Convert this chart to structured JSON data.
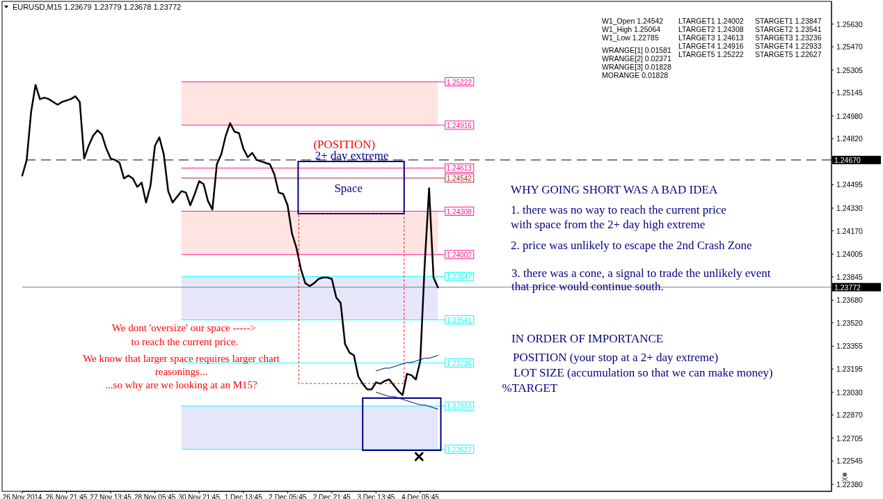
{
  "chart_data": {
    "type": "line",
    "title": "EURUSD,M15 1.23679 1.23779 1.23678 1.23772",
    "categories": [
      "26 Nov 2014",
      null,
      null,
      null,
      null,
      null,
      null,
      null,
      null,
      null,
      "26 Nov 21:45",
      null,
      null,
      null,
      null,
      null,
      null,
      null,
      null,
      null,
      "27 Nov 13:45",
      null,
      null,
      null,
      null,
      null,
      null,
      null,
      null,
      null,
      "28 Nov 05:45",
      null,
      null,
      null,
      null,
      null,
      null,
      null,
      null,
      null,
      "30 Nov 21:45",
      null,
      null,
      null,
      null,
      null,
      null,
      null,
      null,
      null,
      "1 Dec 13:45",
      null,
      null,
      null,
      null,
      null,
      null,
      null,
      null,
      null,
      "2 Dec 05:45",
      null,
      null,
      null,
      null,
      null,
      null,
      null,
      null,
      null,
      "2 Dec 21:45",
      null,
      null,
      null,
      null,
      null,
      null,
      null,
      null,
      null,
      "3 Dec 13:45",
      null,
      null,
      null,
      null,
      null,
      null,
      null,
      null,
      null,
      "4 Dec 05:45",
      null,
      null,
      null,
      null,
      null,
      null,
      null,
      null,
      null,
      null,
      null,
      null,
      null,
      null,
      null,
      null,
      null,
      null,
      null,
      null,
      null,
      null,
      null,
      null,
      null,
      null,
      null,
      null,
      null,
      null,
      null,
      null,
      null,
      null,
      null,
      null,
      null,
      null,
      null,
      null,
      null,
      null,
      null,
      null,
      null,
      null,
      null,
      null,
      null,
      null,
      null,
      null,
      null,
      null,
      null,
      null,
      null,
      null,
      null,
      null,
      null,
      null,
      null,
      null,
      null,
      null,
      null,
      null,
      null,
      null,
      null,
      null,
      null,
      null,
      null,
      null,
      null,
      null,
      null,
      null,
      null,
      null,
      null,
      null,
      null,
      null,
      null,
      null,
      null,
      null,
      null,
      null,
      null
    ],
    "series": [
      {
        "color": "#000000",
        "values": [
          1.2456,
          1.2467,
          1.2501,
          1.252,
          1.251,
          1.2511,
          1.251,
          1.2508,
          1.2506,
          1.2508,
          1.2509,
          1.251,
          1.2512,
          1.2508,
          1.2468,
          1.2477,
          1.2484,
          1.2488,
          1.2485,
          1.2475,
          1.2468,
          1.2467,
          1.2465,
          1.2454,
          1.2456,
          1.2454,
          1.2448,
          1.2451,
          1.2437,
          1.2449,
          1.2477,
          1.2483,
          1.2471,
          1.2445,
          1.2437,
          1.2441,
          1.2445,
          1.2444,
          1.2435,
          1.2443,
          1.2452,
          1.245,
          1.2438,
          1.2432,
          1.2464,
          1.2471,
          1.2484,
          1.2493,
          1.2487,
          1.2486,
          1.2475,
          1.2469,
          1.2472,
          1.2467,
          1.2466,
          1.2465,
          1.2464,
          1.2457,
          1.2444,
          1.2443,
          1.2435,
          1.2415,
          1.2405,
          1.239,
          1.238,
          1.2378,
          1.238,
          1.2383,
          1.2384,
          1.2384,
          1.2383,
          1.237,
          1.2366,
          1.2337,
          1.2331,
          1.2329,
          1.2314,
          1.2309,
          1.2305,
          1.2305,
          1.231,
          1.2309,
          1.2311,
          1.2312,
          1.2308,
          1.2304,
          1.2301,
          1.2316,
          1.2315,
          1.2312,
          1.2325,
          1.2393,
          1.2447,
          1.2384,
          1.2377,
          null,
          null,
          null,
          null,
          null,
          null,
          null,
          null,
          null,
          null,
          null,
          null,
          null,
          null,
          null,
          null,
          null,
          null,
          null,
          null,
          null,
          null,
          null,
          null,
          null,
          null,
          null,
          null,
          null,
          null,
          null,
          null,
          null,
          null,
          null,
          null,
          null,
          null,
          null,
          null,
          null,
          null,
          null,
          null,
          null,
          null,
          null,
          null,
          null,
          null,
          null,
          null,
          null,
          null,
          null,
          null,
          null,
          null,
          null,
          null,
          null,
          null,
          null,
          null,
          null,
          null,
          null,
          null,
          null,
          null,
          null,
          null,
          null,
          null,
          null,
          null,
          null,
          null,
          null,
          null,
          null,
          null,
          null,
          null,
          null,
          null,
          null,
          null,
          null
        ]
      },
      {
        "type": "line",
        "color": "#000080",
        "values": [
          null,
          null,
          null,
          null,
          null,
          null,
          null,
          null,
          null,
          null,
          null,
          null,
          null,
          null,
          null,
          null,
          null,
          null,
          null,
          null,
          null,
          null,
          null,
          null,
          null,
          null,
          null,
          null,
          null,
          null,
          null,
          null,
          null,
          null,
          null,
          null,
          null,
          null,
          null,
          null,
          null,
          null,
          null,
          null,
          null,
          null,
          null,
          null,
          null,
          null,
          null,
          null,
          null,
          null,
          null,
          null,
          null,
          null,
          null,
          null,
          null,
          null,
          null,
          null,
          null,
          null,
          null,
          null,
          null,
          null,
          null,
          null,
          null,
          null,
          null,
          null,
          null,
          null,
          null,
          null,
          1.2318,
          1.2319,
          1.232,
          1.232,
          1.2321,
          1.2322,
          1.2323,
          1.2324,
          1.2324,
          1.2325,
          1.2326,
          1.2327,
          1.2327,
          1.2328,
          1.2329,
          null,
          null,
          null,
          null,
          null,
          null,
          null,
          null,
          null,
          null,
          null,
          null,
          null,
          null,
          null,
          null,
          null,
          null,
          null,
          null,
          null,
          null,
          null,
          null,
          null,
          null,
          null,
          null,
          null,
          null,
          null,
          null,
          null,
          null,
          null,
          null,
          null,
          null,
          null,
          null,
          null,
          null,
          null,
          null,
          null,
          null,
          null,
          null,
          null,
          null,
          null,
          null,
          null,
          null,
          null,
          null,
          null,
          null,
          null,
          null,
          null,
          null,
          null,
          null,
          null,
          null,
          null,
          null,
          null,
          null,
          null,
          null,
          null,
          null,
          null,
          null,
          null,
          null,
          null,
          null,
          null,
          null,
          null,
          null,
          null,
          null,
          null,
          null,
          null
        ]
      },
      {
        "type": "line",
        "color": "#000080",
        "values": [
          null,
          null,
          null,
          null,
          null,
          null,
          null,
          null,
          null,
          null,
          null,
          null,
          null,
          null,
          null,
          null,
          null,
          null,
          null,
          null,
          null,
          null,
          null,
          null,
          null,
          null,
          null,
          null,
          null,
          null,
          null,
          null,
          null,
          null,
          null,
          null,
          null,
          null,
          null,
          null,
          null,
          null,
          null,
          null,
          null,
          null,
          null,
          null,
          null,
          null,
          null,
          null,
          null,
          null,
          null,
          null,
          null,
          null,
          null,
          null,
          null,
          null,
          null,
          null,
          null,
          null,
          null,
          null,
          null,
          null,
          null,
          null,
          null,
          null,
          null,
          null,
          null,
          null,
          null,
          null,
          1.2303,
          1.2302,
          1.2301,
          1.23,
          1.23,
          1.2299,
          1.2298,
          1.2297,
          1.2296,
          1.2295,
          1.2294,
          1.2294,
          1.2293,
          1.2292,
          1.2291,
          null,
          null,
          null,
          null,
          null,
          null,
          null,
          null,
          null,
          null,
          null,
          null,
          null,
          null,
          null,
          null,
          null,
          null,
          null,
          null,
          null,
          null,
          null,
          null,
          null,
          null,
          null,
          null,
          null,
          null,
          null,
          null,
          null,
          null,
          null,
          null,
          null,
          null,
          null,
          null,
          null,
          null,
          null,
          null,
          null,
          null,
          null,
          null,
          null,
          null,
          null,
          null,
          null,
          null,
          null,
          null,
          null,
          null,
          null,
          null,
          null,
          null,
          null,
          null,
          null,
          null,
          null,
          null,
          null,
          null,
          null,
          null,
          null,
          null,
          null,
          null,
          null,
          null,
          null,
          null,
          null,
          null,
          null,
          null,
          null,
          null,
          null,
          null,
          null
        ]
      }
    ],
    "ylim": [
      1.2233,
      1.2579
    ],
    "yticks": [
      {
        "value": 1.2563,
        "label": "1.25630"
      },
      {
        "value": 1.2547,
        "label": "1.25470"
      },
      {
        "value": 1.25305,
        "label": "1.25305"
      },
      {
        "value": 1.25145,
        "label": "1.25145"
      },
      {
        "value": 1.2498,
        "label": "1.24980"
      },
      {
        "value": 1.2482,
        "label": "1.24820"
      },
      {
        "value": 1.24495,
        "label": "1.24495"
      },
      {
        "value": 1.2433,
        "label": "1.24330"
      },
      {
        "value": 1.2417,
        "label": "1.24170"
      },
      {
        "value": 1.24005,
        "label": "1.24005"
      },
      {
        "value": 1.23845,
        "label": "1.23845"
      },
      {
        "value": 1.2368,
        "label": "1.23680"
      },
      {
        "value": 1.2352,
        "label": "1.23520"
      },
      {
        "value": 1.23355,
        "label": "1.23355"
      },
      {
        "value": 1.23195,
        "label": "1.23195"
      },
      {
        "value": 1.2303,
        "label": "1.23030"
      },
      {
        "value": 1.2287,
        "label": "1.22870"
      },
      {
        "value": 1.22705,
        "label": "1.22705"
      },
      {
        "value": 1.22545,
        "label": "1.22545"
      },
      {
        "value": 1.2238,
        "label": "1.22380"
      }
    ],
    "ref_lines": [
      {
        "axis": "y",
        "value": 1.2467,
        "label": "1.24670",
        "color": "#000000",
        "line_style": "dashed"
      },
      {
        "axis": "y",
        "value": 1.23772,
        "label": "1.23772",
        "color": "#708090"
      },
      {
        "axis": "y",
        "value": 1.25222,
        "label": "1.25222",
        "color": "#ff1493"
      },
      {
        "axis": "y",
        "value": 1.24916,
        "label": "1.24916",
        "color": "#ff1493"
      },
      {
        "axis": "y",
        "value": 1.24613,
        "label": "1.24613",
        "color": "#ff1493"
      },
      {
        "axis": "y",
        "value": 1.24542,
        "label": "1.24542",
        "color": "#a52a2a"
      },
      {
        "axis": "y",
        "value": 1.24308,
        "label": "1.24308",
        "color": "#ff1493"
      },
      {
        "axis": "y",
        "value": 1.24002,
        "label": "1.24002",
        "color": "#ff1493"
      },
      {
        "axis": "y",
        "value": 1.23847,
        "label": "1.23847",
        "color": "#00ffff"
      },
      {
        "axis": "y",
        "value": 1.23541,
        "label": "1.23541",
        "color": "#00ffff"
      },
      {
        "axis": "y",
        "value": 1.23236,
        "label": "1.23236",
        "color": "#00ffff"
      },
      {
        "axis": "y",
        "value": 1.22933,
        "label": "1.22933",
        "color": "#00ffff"
      },
      {
        "axis": "y",
        "value": 1.22627,
        "label": "1.22627",
        "color": "#00ffff"
      }
    ],
    "bands": [
      {
        "axis": "y",
        "from": 1.24916,
        "to": 1.25222,
        "color": "#ffe4e1"
      },
      {
        "axis": "y",
        "from": 1.24002,
        "to": 1.24308,
        "color": "#ffe4e1"
      },
      {
        "axis": "y",
        "from": 1.23541,
        "to": 1.23847,
        "color": "#e6e6fa"
      },
      {
        "axis": "y",
        "from": 1.22627,
        "to": 1.22933,
        "color": "#e6e6fa"
      }
    ],
    "annotations": [
      "W1_Open 1.24542",
      "W1_High 1.25064",
      "W1_Low 1.22785",
      "WRANGE[1] 0.01581",
      "WRANGE[2] 0.02371",
      "WRANGE[3] 0.01828",
      "MORANGE 0.01828",
      "LTARGET1 1.24002",
      "LTARGET2 1.24308",
      "LTARGET3 1.24613",
      "LTARGET4 1.24916",
      "LTARGET5 1.25222",
      "STARGET1 1.23847",
      "STARGET2 1.23541",
      "STARGET3 1.23236",
      "STARGET4 1.22933",
      "STARGET5 1.22627",
      "(POSITION)",
      "2+ day extreme",
      "Space",
      "We dont 'oversize' our space ----->",
      "to reach the current price.",
      "We know that larger space requires larger chart",
      "reasonings...",
      "...so why are we looking at an M15?",
      "WHY GOING SHORT WAS A BAD IDEA",
      "1. there was no way to reach the current price",
      "with space from the 2+ day high extreme",
      "2. price was unlikely to escape the 2nd Crash Zone",
      "3. there was a cone, a signal to trade the unlikely event",
      "that price would continue south.",
      "IN ORDER OF IMPORTANCE",
      "POSITION (your stop at a 2+ day extreme)",
      "LOT SIZE (accumulation so that we can make money)",
      "%TARGET"
    ]
  }
}
